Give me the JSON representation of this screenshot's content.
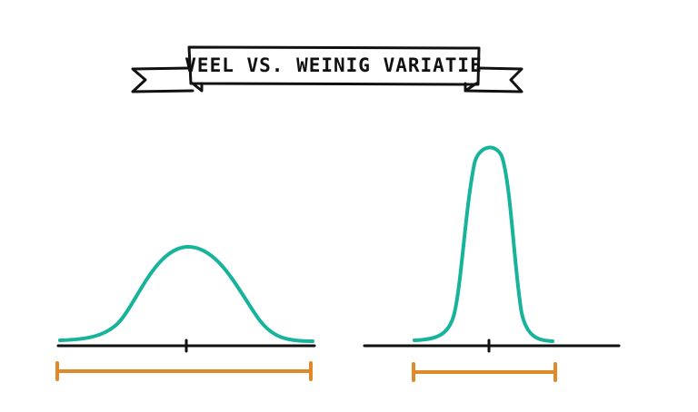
{
  "title": "VEEL VS. WEINIG VARIATIE"
}
